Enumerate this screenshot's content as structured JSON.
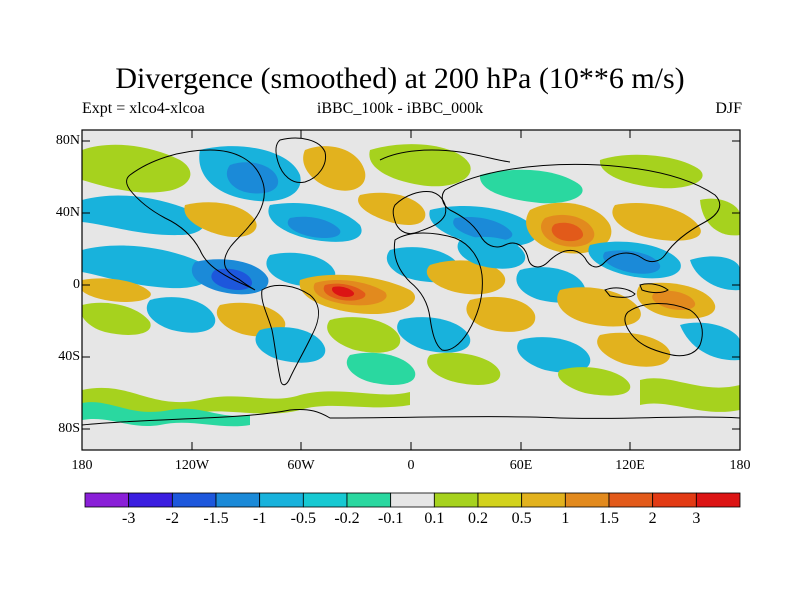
{
  "title": "Divergence (smoothed) at 200 hPa (10**6 m/s)",
  "subtitle_left": "Expt = xlco4-xlcoa",
  "subtitle_center": "iBBC_100k - iBBC_000k",
  "subtitle_right": "DJF",
  "lat_ticks": [
    "80N",
    "40N",
    "0",
    "40S",
    "80S"
  ],
  "lon_ticks": [
    "180",
    "120W",
    "60W",
    "0",
    "60E",
    "120E",
    "180"
  ],
  "colorbar": {
    "labels": [
      "-3",
      "-2",
      "-1.5",
      "-1",
      "-0.5",
      "-0.2",
      "-0.1",
      "0.1",
      "0.2",
      "0.5",
      "1",
      "1.5",
      "2",
      "3"
    ],
    "colors": [
      "#8a1fd8",
      "#3b1ee0",
      "#1d57dc",
      "#1b8ad8",
      "#18b2dc",
      "#17c9d2",
      "#2ad8a0",
      "#e6e6e6",
      "#a6d21e",
      "#d2d21c",
      "#e2b21e",
      "#e28a1e",
      "#e25a1a",
      "#e23a14",
      "#dc1414"
    ]
  },
  "colors": {
    "background": "#e6e6e6",
    "coast": "#000000"
  }
}
